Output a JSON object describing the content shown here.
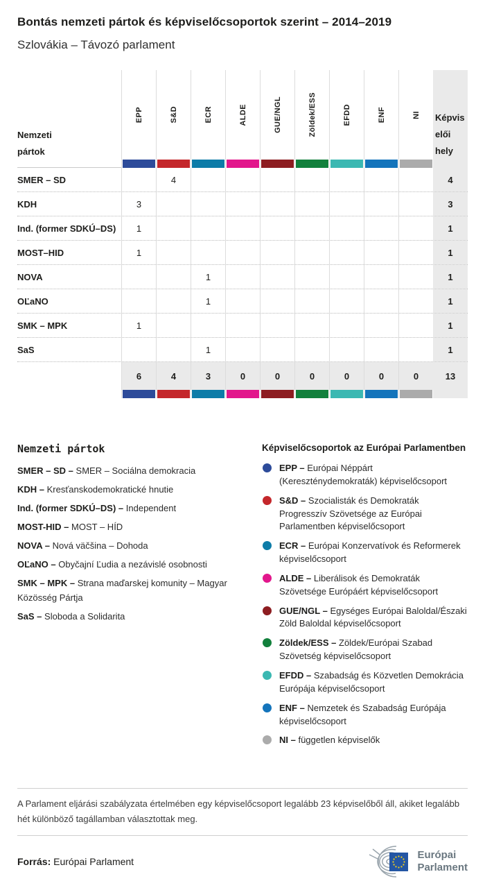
{
  "header": {
    "title": "Bontás nemzeti pártok és képviselőcsoportok szerint – 2014–2019",
    "subtitle": "Szlovákia – Távozó parlament"
  },
  "table": {
    "row_header_label": "Nemzeti pártok",
    "seats_label": "Képviselői hely",
    "groups": [
      {
        "label": "EPP",
        "color": "#2d4b9a"
      },
      {
        "label": "S&D",
        "color": "#c4272b"
      },
      {
        "label": "ECR",
        "color": "#0d7ca8"
      },
      {
        "label": "ALDE",
        "color": "#e2178c"
      },
      {
        "label": "GUE/NGL",
        "color": "#8d1d21"
      },
      {
        "label": "Zöldek/ESS",
        "color": "#12803c"
      },
      {
        "label": "EFDD",
        "color": "#3bb8b2"
      },
      {
        "label": "ENF",
        "color": "#1474bb"
      },
      {
        "label": "NI",
        "color": "#ababab"
      }
    ],
    "rows": [
      {
        "party": "SMER – SD",
        "values": [
          "",
          "4",
          "",
          "",
          "",
          "",
          "",
          "",
          ""
        ],
        "seats": "4"
      },
      {
        "party": "KDH",
        "values": [
          "3",
          "",
          "",
          "",
          "",
          "",
          "",
          "",
          ""
        ],
        "seats": "3"
      },
      {
        "party": "Ind. (former SDKÚ–DS)",
        "values": [
          "1",
          "",
          "",
          "",
          "",
          "",
          "",
          "",
          ""
        ],
        "seats": "1"
      },
      {
        "party": "MOST–HID",
        "values": [
          "1",
          "",
          "",
          "",
          "",
          "",
          "",
          "",
          ""
        ],
        "seats": "1"
      },
      {
        "party": "NOVA",
        "values": [
          "",
          "",
          "1",
          "",
          "",
          "",
          "",
          "",
          ""
        ],
        "seats": "1"
      },
      {
        "party": "OĽaNO",
        "values": [
          "",
          "",
          "1",
          "",
          "",
          "",
          "",
          "",
          ""
        ],
        "seats": "1"
      },
      {
        "party": "SMK – MPK",
        "values": [
          "1",
          "",
          "",
          "",
          "",
          "",
          "",
          "",
          ""
        ],
        "seats": "1"
      },
      {
        "party": "SaS",
        "values": [
          "",
          "",
          "1",
          "",
          "",
          "",
          "",
          "",
          ""
        ],
        "seats": "1"
      }
    ],
    "totals": {
      "values": [
        "6",
        "4",
        "3",
        "0",
        "0",
        "0",
        "0",
        "0",
        "0"
      ],
      "seats": "13"
    }
  },
  "legend_parties": {
    "heading": "Nemzeti pártok",
    "items": [
      {
        "abbr": "SMER – SD –",
        "name": "SMER – Sociálna demokracia"
      },
      {
        "abbr": "KDH –",
        "name": "Kresťanskodemokratické hnutie"
      },
      {
        "abbr": "Ind. (former SDKÚ–DS) –",
        "name": "Independent"
      },
      {
        "abbr": "MOST-HID –",
        "name": "MOST – HÍD"
      },
      {
        "abbr": "NOVA –",
        "name": "Nová väčšina – Dohoda"
      },
      {
        "abbr": "OĽaNO –",
        "name": "Obyčajní Ľudia a nezávislé osobnosti"
      },
      {
        "abbr": "SMK – MPK –",
        "name": "Strana maďarskej komunity – Magyar Közösség Pártja"
      },
      {
        "abbr": "SaS –",
        "name": "Sloboda a Solidarita"
      }
    ]
  },
  "legend_groups": {
    "heading": "Képviselőcsoportok az Európai Parlamentben",
    "items": [
      {
        "abbr": "EPP –",
        "desc": "Európai Néppárt (Kereszténydemokraták) képviselőcsoport",
        "color": "#2d4b9a"
      },
      {
        "abbr": "S&D –",
        "desc": "Szocialisták és Demokraták Progresszív Szövetsége az Európai Parlamentben képviselőcsoport",
        "color": "#c4272b"
      },
      {
        "abbr": "ECR –",
        "desc": "Európai Konzervatívok és Reformerek képviselőcsoport",
        "color": "#0d7ca8"
      },
      {
        "abbr": "ALDE –",
        "desc": "Liberálisok és Demokraták Szövetsége Európáért képviselőcsoport",
        "color": "#e2178c"
      },
      {
        "abbr": "GUE/NGL –",
        "desc": "Egységes Európai Baloldal/Északi Zöld Baloldal képviselőcsoport",
        "color": "#8d1d21"
      },
      {
        "abbr": "Zöldek/ESS –",
        "desc": "Zöldek/Európai Szabad Szövetség képviselőcsoport",
        "color": "#12803c"
      },
      {
        "abbr": "EFDD –",
        "desc": "Szabadság és Közvetlen Demokrácia Európája képviselőcsoport",
        "color": "#3bb8b2"
      },
      {
        "abbr": "ENF –",
        "desc": "Nemzetek és Szabadság Európája képviselőcsoport",
        "color": "#1474bb"
      },
      {
        "abbr": "NI –",
        "desc": "független képviselők",
        "color": "#ababab"
      }
    ]
  },
  "footer": {
    "footnote": "A Parlament eljárási szabályzata értelmében egy képviselőcsoport legalább 23 képviselőből áll, akiket legalább hét különböző tagállamban választottak meg.",
    "source_label": "Forrás:",
    "source_value": "Európai Parlament",
    "logo_line1": "Európai",
    "logo_line2": "Parlament"
  }
}
